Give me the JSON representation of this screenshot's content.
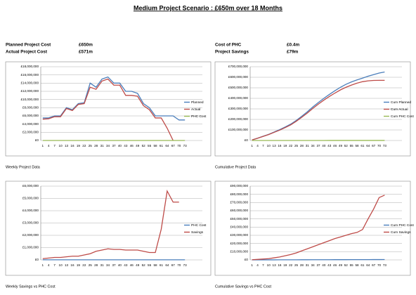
{
  "header": {
    "title": "Medium Project Scenario : £650m over 18 Months"
  },
  "summary": {
    "left": [
      [
        "Planned Project Cost",
        "£650m"
      ],
      [
        "Actual Project Cost",
        "£571m"
      ]
    ],
    "right": [
      [
        "Cost of PHC",
        "£0.4m"
      ],
      [
        "Project Savings",
        "£79m"
      ]
    ]
  },
  "chart_data": [
    {
      "type": "line",
      "caption": "Weekly Project Data",
      "legend": "right",
      "grid": true,
      "x": [
        1,
        4,
        7,
        10,
        13,
        16,
        19,
        22,
        25,
        28,
        31,
        34,
        37,
        40,
        43,
        46,
        49,
        52,
        55,
        58,
        61,
        64,
        67,
        70,
        73
      ],
      "xlim": [
        0,
        74
      ],
      "xticks": [
        1,
        4,
        7,
        10,
        13,
        16,
        19,
        22,
        25,
        28,
        31,
        34,
        37,
        40,
        43,
        46,
        49,
        52,
        55,
        58,
        61,
        64,
        67,
        70,
        73
      ],
      "ylim": [
        0,
        18000000
      ],
      "yticks": [
        {
          "value": 0,
          "label": "£0"
        },
        {
          "value": 2000000,
          "label": "£2,000,000"
        },
        {
          "value": 4000000,
          "label": "£4,000,000"
        },
        {
          "value": 6000000,
          "label": "£6,000,000"
        },
        {
          "value": 8000000,
          "label": "£8,000,000"
        },
        {
          "value": 10000000,
          "label": "£10,000,000"
        },
        {
          "value": 12000000,
          "label": "£12,000,000"
        },
        {
          "value": 14000000,
          "label": "£14,000,000"
        },
        {
          "value": 16000000,
          "label": "£16,000,000"
        },
        {
          "value": 18000000,
          "label": "£18,000,000"
        }
      ],
      "series": [
        {
          "name": "Planned",
          "color": "#4a7ebb",
          "values": [
            5500000,
            5500000,
            6000000,
            6000000,
            8000000,
            7500000,
            9000000,
            9200000,
            14000000,
            13000000,
            15000000,
            15500000,
            14000000,
            14000000,
            12000000,
            12000000,
            11500000,
            9000000,
            8000000,
            6000000,
            6000000,
            6000000,
            6000000,
            5000000,
            5000000
          ]
        },
        {
          "name": "Actual",
          "color": "#be4b48",
          "values": [
            5200000,
            5300000,
            5800000,
            5800000,
            7800000,
            7300000,
            8800000,
            9000000,
            13000000,
            12500000,
            14500000,
            15000000,
            13500000,
            13500000,
            11000000,
            11000000,
            10800000,
            8500000,
            7500000,
            5500000,
            5500000,
            3000000,
            0,
            null,
            null
          ]
        },
        {
          "name": "PHC Cost",
          "color": "#98b954",
          "values": [
            5000,
            5000,
            5000,
            5000,
            5000,
            5000,
            5000,
            5000,
            5000,
            5000,
            5000,
            5000,
            5000,
            5000,
            5000,
            5000,
            5000,
            5000,
            5000,
            5000,
            5000,
            5000,
            5000,
            5000,
            5000
          ]
        }
      ]
    },
    {
      "type": "line",
      "caption": "Cumulative Project Data",
      "legend": "right",
      "grid": true,
      "x": [
        1,
        4,
        7,
        10,
        13,
        16,
        19,
        22,
        25,
        28,
        31,
        34,
        37,
        40,
        43,
        46,
        49,
        52,
        55,
        58,
        61,
        64,
        67,
        70,
        73
      ],
      "xlim": [
        0,
        74
      ],
      "xticks": [
        1,
        4,
        7,
        10,
        13,
        16,
        19,
        22,
        25,
        28,
        31,
        34,
        37,
        40,
        43,
        46,
        49,
        52,
        55,
        58,
        61,
        64,
        67,
        70,
        73
      ],
      "ylim": [
        0,
        700000000
      ],
      "yticks": [
        {
          "value": 0,
          "label": "£0"
        },
        {
          "value": 100000000,
          "label": "£100,000,000"
        },
        {
          "value": 200000000,
          "label": "£200,000,000"
        },
        {
          "value": 300000000,
          "label": "£300,000,000"
        },
        {
          "value": 400000000,
          "label": "£400,000,000"
        },
        {
          "value": 500000000,
          "label": "£500,000,000"
        },
        {
          "value": 600000000,
          "label": "£600,000,000"
        },
        {
          "value": 700000000,
          "label": "£700,000,000"
        }
      ],
      "series": [
        {
          "name": "Cum Planned",
          "color": "#4a7ebb",
          "values": [
            5000000,
            22000000,
            40000000,
            58000000,
            80000000,
            103000000,
            128000000,
            155000000,
            190000000,
            230000000,
            272000000,
            318000000,
            360000000,
            400000000,
            437000000,
            472000000,
            505000000,
            533000000,
            556000000,
            575000000,
            592000000,
            610000000,
            625000000,
            640000000,
            650000000
          ]
        },
        {
          "name": "Cum Actual",
          "color": "#be4b48",
          "values": [
            5000000,
            21000000,
            38000000,
            56000000,
            77000000,
            98000000,
            122000000,
            148000000,
            182000000,
            220000000,
            260000000,
            304000000,
            345000000,
            383000000,
            418000000,
            450000000,
            480000000,
            505000000,
            526000000,
            544000000,
            558000000,
            566000000,
            570000000,
            571000000,
            571000000
          ]
        },
        {
          "name": "Cum PHC Cost",
          "color": "#98b954",
          "values": [
            5000,
            20000,
            35000,
            50000,
            70000,
            85000,
            100000,
            115000,
            135000,
            150000,
            165000,
            185000,
            200000,
            215000,
            235000,
            250000,
            265000,
            285000,
            300000,
            315000,
            335000,
            350000,
            365000,
            385000,
            400000
          ]
        }
      ]
    },
    {
      "type": "line",
      "caption": "Weekly Savings vs PHC Cost",
      "legend": "right",
      "grid": true,
      "x": [
        1,
        4,
        7,
        10,
        13,
        16,
        19,
        22,
        25,
        28,
        31,
        34,
        37,
        40,
        43,
        46,
        49,
        52,
        55,
        58,
        61,
        64,
        67,
        70,
        73
      ],
      "xlim": [
        0,
        74
      ],
      "xticks": [
        1,
        4,
        7,
        10,
        13,
        16,
        19,
        22,
        25,
        28,
        31,
        34,
        37,
        40,
        43,
        46,
        49,
        52,
        55,
        58,
        61,
        64,
        67,
        70,
        73
      ],
      "ylim": [
        0,
        6000000
      ],
      "yticks": [
        {
          "value": 0,
          "label": "£0"
        },
        {
          "value": 1000000,
          "label": "£1,000,000"
        },
        {
          "value": 2000000,
          "label": "£2,000,000"
        },
        {
          "value": 3000000,
          "label": "£3,000,000"
        },
        {
          "value": 4000000,
          "label": "£4,000,000"
        },
        {
          "value": 5000000,
          "label": "£5,000,000"
        },
        {
          "value": 6000000,
          "label": "£6,000,000"
        }
      ],
      "series": [
        {
          "name": "PHC Cost",
          "color": "#4a7ebb",
          "values": [
            5000,
            5000,
            5000,
            5000,
            5000,
            5000,
            5000,
            5000,
            5000,
            5000,
            5000,
            5000,
            5000,
            5000,
            5000,
            5000,
            5000,
            5000,
            5000,
            5000,
            5000,
            5000,
            5000,
            5000,
            5000
          ]
        },
        {
          "name": "Savings",
          "color": "#be4b48",
          "values": [
            100000,
            150000,
            200000,
            200000,
            250000,
            300000,
            300000,
            400000,
            500000,
            700000,
            800000,
            900000,
            850000,
            850000,
            800000,
            800000,
            800000,
            700000,
            600000,
            600000,
            2500000,
            5600000,
            4700000,
            4700000,
            null
          ]
        }
      ]
    },
    {
      "type": "line",
      "caption": "Cumulative Savings vs PHC Cost",
      "legend": "right",
      "grid": true,
      "x": [
        1,
        4,
        7,
        10,
        13,
        16,
        19,
        22,
        25,
        28,
        31,
        34,
        37,
        40,
        43,
        46,
        49,
        52,
        55,
        58,
        61,
        64,
        67,
        70,
        73
      ],
      "xlim": [
        0,
        74
      ],
      "xticks": [
        1,
        4,
        7,
        10,
        13,
        16,
        19,
        22,
        25,
        28,
        31,
        34,
        37,
        40,
        43,
        46,
        49,
        52,
        55,
        58,
        61,
        64,
        67,
        70,
        73
      ],
      "ylim": [
        0,
        90000000
      ],
      "yticks": [
        {
          "value": 0,
          "label": "£0"
        },
        {
          "value": 10000000,
          "label": "£10,000,000"
        },
        {
          "value": 20000000,
          "label": "£20,000,000"
        },
        {
          "value": 30000000,
          "label": "£30,000,000"
        },
        {
          "value": 40000000,
          "label": "£40,000,000"
        },
        {
          "value": 50000000,
          "label": "£50,000,000"
        },
        {
          "value": 60000000,
          "label": "£60,000,000"
        },
        {
          "value": 70000000,
          "label": "£70,000,000"
        },
        {
          "value": 80000000,
          "label": "£80,000,000"
        },
        {
          "value": 90000000,
          "label": "£90,000,000"
        }
      ],
      "series": [
        {
          "name": "Cum PHC Cost",
          "color": "#4a7ebb",
          "values": [
            5000,
            20000,
            35000,
            50000,
            70000,
            85000,
            100000,
            115000,
            135000,
            150000,
            165000,
            185000,
            200000,
            215000,
            235000,
            250000,
            265000,
            285000,
            300000,
            315000,
            335000,
            350000,
            365000,
            385000,
            400000
          ]
        },
        {
          "name": "Cum Savings",
          "color": "#be4b48",
          "values": [
            200000,
            600000,
            1000000,
            1500000,
            2500000,
            3500000,
            5000000,
            6500000,
            8500000,
            11000000,
            13500000,
            16000000,
            18500000,
            21000000,
            23500000,
            26000000,
            28000000,
            30000000,
            32000000,
            33500000,
            37000000,
            50000000,
            62000000,
            76000000,
            79000000
          ]
        }
      ]
    }
  ]
}
